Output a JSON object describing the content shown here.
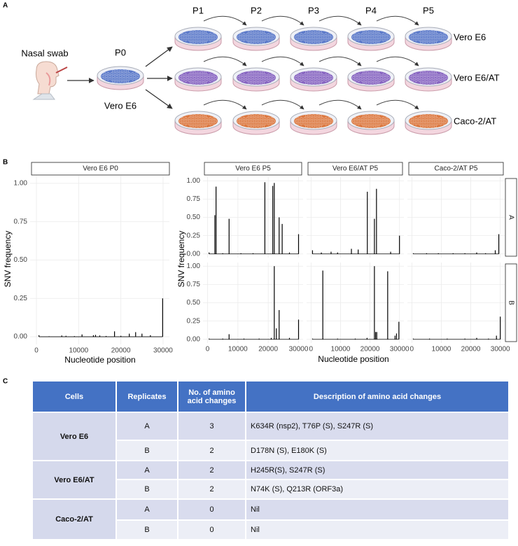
{
  "panel_labels": [
    "A",
    "B",
    "C"
  ],
  "diagram": {
    "nasal_swab": "Nasal swab",
    "p0_label": "P0",
    "p0_cells": "Vero E6",
    "passages": [
      "P1",
      "P2",
      "P3",
      "P4",
      "P5"
    ],
    "rows": [
      {
        "label": "Vero E6",
        "color": "#4a6bc4"
      },
      {
        "label": "Vero E6/AT",
        "color": "#7b55bb"
      },
      {
        "label": "Caco-2/AT",
        "color": "#d96a2c"
      }
    ]
  },
  "chart_data": [
    {
      "type": "spike",
      "title": "Vero E6 P0",
      "xlabel": "Nucleotide position",
      "ylabel": "SNV frequency",
      "xlim": [
        -1500,
        31500
      ],
      "xticks": [
        0,
        10000,
        20000,
        30000
      ],
      "ylim": [
        -0.05,
        1.05
      ],
      "yticks": [
        {
          "value": 0,
          "label": "0.00"
        },
        0.25,
        {
          "value": 0.5,
          "label": "0.50"
        },
        0.75,
        {
          "value": 1,
          "label": "1.00"
        }
      ],
      "grid": true,
      "color": "#000000",
      "x": [
        600,
        3000,
        6000,
        7000,
        9000,
        10800,
        13500,
        14000,
        15000,
        16500,
        18500,
        20000,
        22000,
        23500,
        25000,
        27000,
        29900
      ],
      "values": [
        0.01,
        0.003,
        0.008,
        0.006,
        0.004,
        0.015,
        0.01,
        0.012,
        0.008,
        0.005,
        0.035,
        0.006,
        0.02,
        0.03,
        0.02,
        0.01,
        0.25
      ]
    },
    {
      "type": "spike",
      "xlabel": "Nucleotide position",
      "ylabel": "SNV frequency",
      "xlim": [
        -1500,
        31500
      ],
      "xticks": [
        0,
        10000,
        20000,
        30000
      ],
      "ylim": [
        -0.05,
        1.05
      ],
      "yticks": [
        {
          "value": 0,
          "label": "0.00"
        },
        0.25,
        {
          "value": 0.5,
          "label": "0.50"
        },
        0.75,
        {
          "value": 1,
          "label": "1.00"
        }
      ],
      "grid": true,
      "color": "#000000",
      "columns": [
        "Vero E6 P5",
        "Vero E6/AT P5",
        "Caco-2/AT P5"
      ],
      "rows": [
        "A",
        "B"
      ],
      "panels": [
        [
          {
            "x": [
              500,
              2400,
              2800,
              5000,
              7100,
              11000,
              15000,
              18900,
              21500,
              22000,
              23600,
              24600,
              27000,
              30000
            ],
            "values": [
              0.02,
              0.53,
              0.92,
              0.01,
              0.48,
              0.01,
              0.01,
              0.98,
              0.93,
              0.97,
              0.5,
              0.41,
              0.02,
              0.27
            ]
          },
          {
            "x": [
              500,
              3500,
              6800,
              9000,
              13700,
              16000,
              19100,
              21500,
              22200,
              27000,
              30000
            ],
            "values": [
              0.05,
              0.02,
              0.03,
              0.02,
              0.07,
              0.06,
              0.85,
              0.48,
              0.89,
              0.03,
              0.25
            ]
          },
          {
            "x": [
              500,
              5000,
              9000,
              14000,
              18000,
              22000,
              25000,
              28300,
              29500
            ],
            "values": [
              0.01,
              0.01,
              0.01,
              0.01,
              0.01,
              0.02,
              0.01,
              0.05,
              0.27
            ]
          }
        ],
        [
          {
            "x": [
              500,
              5000,
              7100,
              12000,
              17000,
              21000,
              22000,
              22700,
              23600,
              27000,
              30000
            ],
            "values": [
              0.01,
              0.01,
              0.07,
              0.01,
              0.01,
              0.02,
              1.0,
              0.15,
              0.4,
              0.02,
              0.27
            ]
          },
          {
            "x": [
              500,
              4000,
              9000,
              15000,
              19000,
              21500,
              21900,
              22300,
              26000,
              28500,
              29000,
              29800
            ],
            "values": [
              0.01,
              0.94,
              0.01,
              0.01,
              0.02,
              1.0,
              0.1,
              0.1,
              0.93,
              0.05,
              0.08,
              0.24
            ]
          },
          {
            "x": [
              500,
              6000,
              12000,
              18000,
              22000,
              26000,
              28700,
              30000
            ],
            "values": [
              0.01,
              0.01,
              0.01,
              0.01,
              0.02,
              0.01,
              0.05,
              0.31
            ]
          }
        ]
      ]
    }
  ],
  "table": {
    "header": [
      "Cells",
      "Replicates",
      "No. of amino acid changes",
      "Description of amino acid changes"
    ],
    "groups": [
      {
        "cells": "Vero E6",
        "rows": [
          [
            "A",
            3,
            "K634R (nsp2), T76P (S), S247R (S)"
          ],
          [
            "B",
            2,
            "D178N (S), E180K (S)"
          ]
        ]
      },
      {
        "cells": "Vero E6/AT",
        "rows": [
          [
            "A",
            2,
            "H245R(S), S247R (S)"
          ],
          [
            "B",
            2,
            "N74K (S), Q213R (ORF3a)"
          ]
        ]
      },
      {
        "cells": "Caco-2/AT",
        "rows": [
          [
            "A",
            0,
            "Nil"
          ],
          [
            "B",
            0,
            "Nil"
          ]
        ]
      }
    ]
  }
}
